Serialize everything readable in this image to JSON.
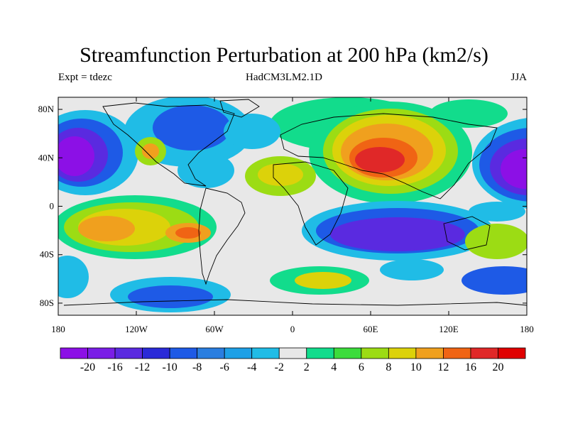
{
  "title": "Streamfunction Perturbation at 200 hPa (km2/s)",
  "subtitle_left": "Expt = tdezc",
  "subtitle_center": "HadCM3LM2.1D",
  "subtitle_right": "JJA",
  "lat_ticks": [
    "80N",
    "40N",
    "0",
    "40S",
    "80S"
  ],
  "lon_ticks": [
    "180",
    "120W",
    "60W",
    "0",
    "60E",
    "120E",
    "180"
  ],
  "colorbar": {
    "labels": [
      "-20",
      "-16",
      "-12",
      "-10",
      "-8",
      "-6",
      "-4",
      "-2",
      "2",
      "4",
      "6",
      "8",
      "10",
      "12",
      "16",
      "20"
    ],
    "colors": [
      "#8c10e6",
      "#7a1ee6",
      "#5a2ae0",
      "#2a2ad8",
      "#1e5ae6",
      "#2a7ee0",
      "#1ea0e6",
      "#20bce6",
      "#e8e8e8",
      "#12dc8c",
      "#3cdc3c",
      "#9cdc14",
      "#dcd20a",
      "#f0a01e",
      "#f06414",
      "#e02828",
      "#e00000"
    ]
  },
  "palette": {
    "land_outline": "#000000",
    "neutral": "#e8e8e8"
  }
}
